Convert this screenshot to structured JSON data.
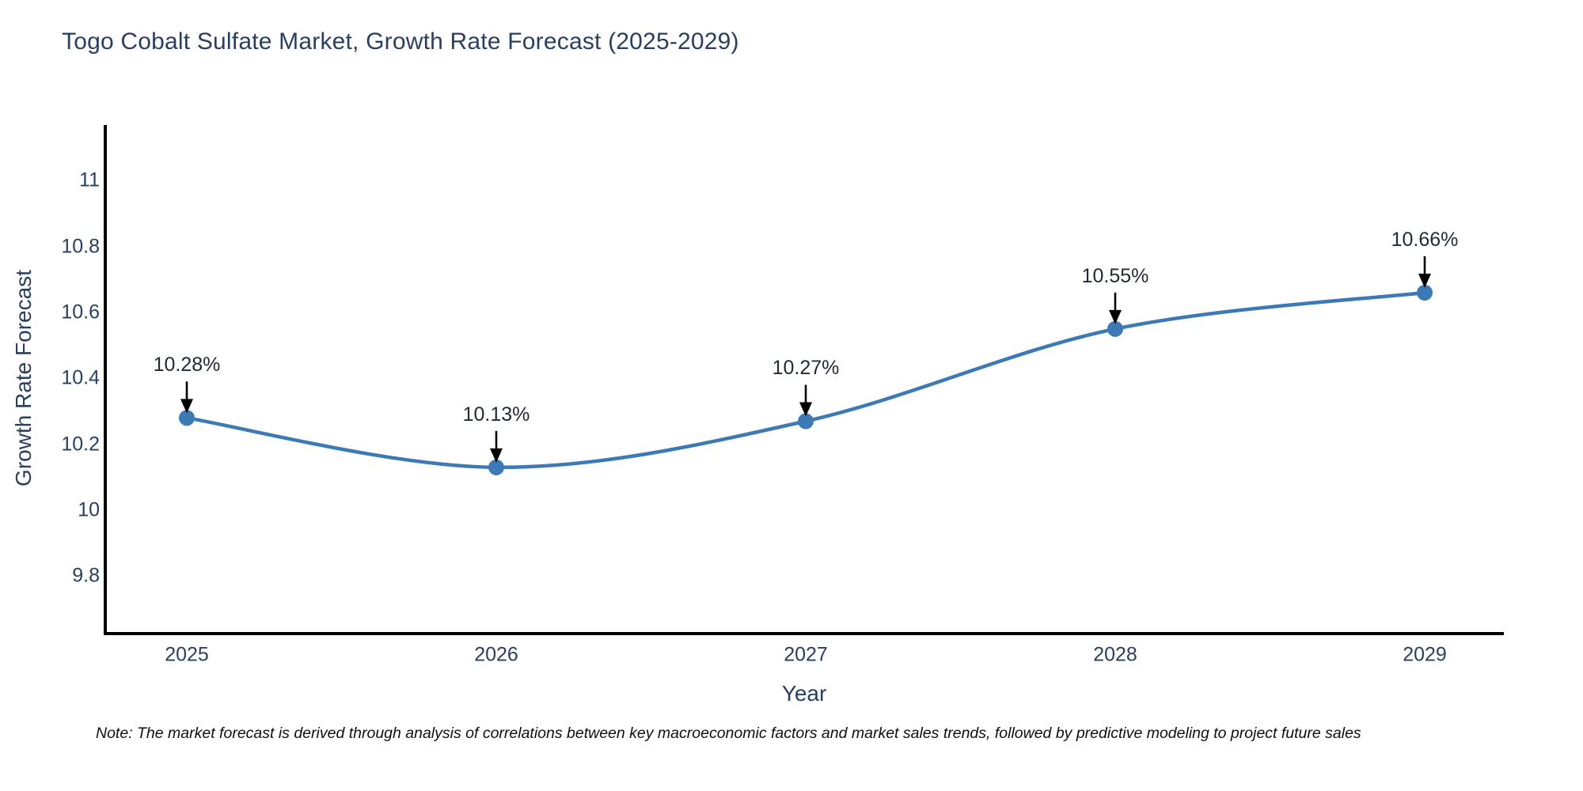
{
  "title": "Togo Cobalt Sulfate Market, Growth Rate Forecast (2025-2029)",
  "note": {
    "text": "Note: The market forecast is derived through analysis of correlations between key macroeconomic factors and market sales trends, followed by predictive modeling to project future sales"
  },
  "colors": {
    "line": "#3d7ab5",
    "marker": "#3d7ab5",
    "axis_spine": "#000000",
    "tick_text": "#2a3f5f",
    "annotation_text": "#222a35",
    "annotation_arrow": "#000000",
    "background": "#ffffff"
  },
  "chart_data": {
    "type": "line",
    "title": "Togo Cobalt Sulfate Market, Growth Rate Forecast (2025-2029)",
    "xlabel": "Year",
    "ylabel": "Growth Rate Forecast",
    "x": [
      2025,
      2026,
      2027,
      2028,
      2029
    ],
    "y": [
      10.28,
      10.13,
      10.27,
      10.55,
      10.66
    ],
    "point_labels": [
      "10.28%",
      "10.13%",
      "10.27%",
      "10.55%",
      "10.66%"
    ],
    "xticks": [
      2025,
      2026,
      2027,
      2028,
      2029
    ],
    "xtick_labels": [
      "2025",
      "2026",
      "2027",
      "2028",
      "2029"
    ],
    "yticks": [
      9.8,
      10,
      10.2,
      10.4,
      10.6,
      10.8,
      11
    ],
    "ytick_labels": [
      "9.8",
      "10",
      "10.2",
      "10.4",
      "10.6",
      "10.8",
      "11"
    ],
    "ylim": [
      9.63,
      11.17
    ],
    "xlim": [
      2024.74,
      2029.26
    ],
    "grid": false,
    "legend": "none",
    "line_style": "spline",
    "annotations": "value labels with downward arrows above each point"
  }
}
